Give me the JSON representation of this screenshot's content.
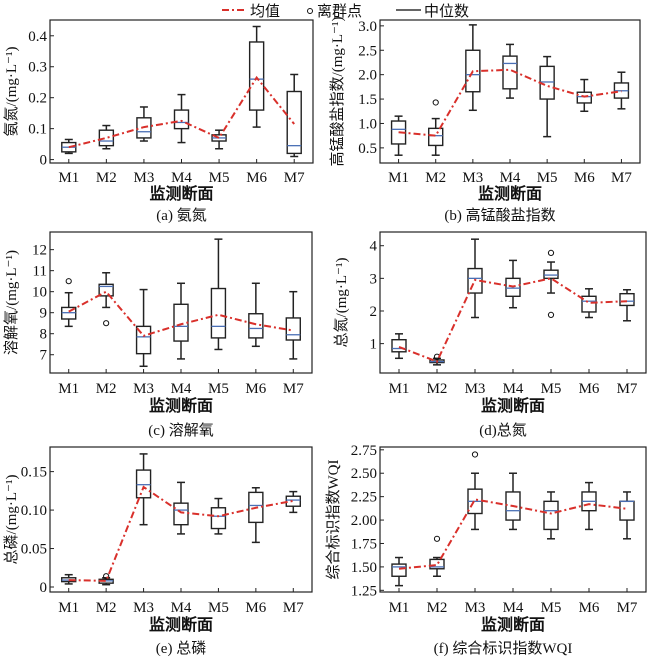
{
  "legend": {
    "mean": "均值",
    "outlier": "离群点",
    "median": "中位数"
  },
  "colors": {
    "mean_line": "#d9302b",
    "median_line": "#4a6fb5",
    "box": "#222222"
  },
  "chart_data": [
    {
      "type": "box",
      "title": "(a) 氨氮",
      "xlabel": "监测断面",
      "ylabel": "氨氮/(mg·L⁻¹)",
      "ylim": [
        -0.011,
        0.451
      ],
      "categories": [
        "M1",
        "M2",
        "M3",
        "M4",
        "M5",
        "M6",
        "M7"
      ],
      "yticks": [
        0,
        0.1,
        0.2,
        0.3,
        0.4
      ],
      "ytick_labels": [
        "0",
        "0.1",
        "0.2",
        "0.3",
        "0.4"
      ],
      "boxes": [
        [
          0.02,
          0.025,
          0.04,
          0.055,
          0.065
        ],
        [
          0.035,
          0.045,
          0.06,
          0.095,
          0.11
        ],
        [
          0.06,
          0.07,
          0.09,
          0.135,
          0.17
        ],
        [
          0.055,
          0.1,
          0.12,
          0.16,
          0.21
        ],
        [
          0.035,
          0.06,
          0.07,
          0.08,
          0.095
        ],
        [
          0.105,
          0.16,
          0.26,
          0.38,
          0.43
        ],
        [
          0.01,
          0.02,
          0.045,
          0.22,
          0.275
        ]
      ],
      "means": [
        0.04,
        0.07,
        0.105,
        0.125,
        0.07,
        0.265,
        0.115
      ],
      "outliers": [
        [],
        [],
        [],
        [],
        [],
        [],
        []
      ]
    },
    {
      "type": "box",
      "title": "(b) 高锰酸盐指数",
      "xlabel": "监测断面",
      "ylabel": "高锰酸盐指数/(mg·L⁻¹)",
      "ylim": [
        0.19,
        3.12
      ],
      "categories": [
        "M1",
        "M2",
        "M3",
        "M4",
        "M5",
        "M6",
        "M7"
      ],
      "yticks": [
        0.5,
        1.0,
        1.5,
        2.0,
        2.5,
        3.0
      ],
      "ytick_labels": [
        "0.5",
        "1.0",
        "1.5",
        "2.0",
        "2.5",
        "3.0"
      ],
      "boxes": [
        [
          0.35,
          0.58,
          0.88,
          1.05,
          1.15
        ],
        [
          0.35,
          0.55,
          0.75,
          0.9,
          1.1
        ],
        [
          1.27,
          1.65,
          2.0,
          2.5,
          3.02
        ],
        [
          1.52,
          1.71,
          2.23,
          2.38,
          2.62
        ],
        [
          0.73,
          1.5,
          1.85,
          2.17,
          2.37
        ],
        [
          1.25,
          1.42,
          1.55,
          1.64,
          1.9
        ],
        [
          1.3,
          1.52,
          1.67,
          1.83,
          2.05
        ]
      ],
      "means": [
        0.82,
        0.75,
        2.07,
        2.1,
        1.77,
        1.55,
        1.66
      ],
      "outliers": [
        [],
        [
          1.43
        ],
        [],
        [],
        [],
        [],
        []
      ]
    },
    {
      "type": "box",
      "title": "(c) 溶解氧",
      "xlabel": "监测断面",
      "ylabel": "溶解氧/(mg·L⁻¹)",
      "ylim": [
        6.13,
        12.84
      ],
      "categories": [
        "M1",
        "M2",
        "M3",
        "M4",
        "M5",
        "M6",
        "M7"
      ],
      "yticks": [
        7,
        8,
        9,
        10,
        11,
        12
      ],
      "ytick_labels": [
        "7",
        "8",
        "9",
        "10",
        "11",
        "12"
      ],
      "boxes": [
        [
          8.35,
          8.7,
          9.0,
          9.25,
          9.95
        ],
        [
          9.25,
          9.8,
          10.25,
          10.35,
          10.9
        ],
        [
          6.45,
          7.05,
          7.85,
          8.35,
          10.1
        ],
        [
          6.8,
          7.65,
          8.35,
          9.4,
          10.4
        ],
        [
          7.25,
          7.8,
          8.35,
          10.15,
          12.5
        ],
        [
          7.4,
          7.8,
          8.25,
          8.95,
          10.4
        ],
        [
          6.8,
          7.7,
          7.95,
          8.75,
          10.0
        ]
      ],
      "means": [
        9.05,
        10.0,
        7.9,
        8.45,
        8.9,
        8.45,
        8.15
      ],
      "outliers": [
        [
          10.5
        ],
        [
          8.5
        ],
        [],
        [],
        [],
        [],
        []
      ]
    },
    {
      "type": "box",
      "title": "(d)总氮",
      "xlabel": "监测断面",
      "ylabel": "总氮/(mg·L⁻¹)",
      "ylim": [
        0.1,
        4.42
      ],
      "categories": [
        "M1",
        "M2",
        "M3",
        "M4",
        "M5",
        "M6",
        "M7"
      ],
      "yticks": [
        1,
        2,
        3,
        4
      ],
      "ytick_labels": [
        "1",
        "2",
        "3",
        "4"
      ],
      "boxes": [
        [
          0.55,
          0.75,
          0.85,
          1.12,
          1.3
        ],
        [
          0.35,
          0.42,
          0.45,
          0.5,
          0.55
        ],
        [
          1.8,
          2.55,
          3.0,
          3.3,
          4.2
        ],
        [
          2.1,
          2.45,
          2.7,
          3.0,
          3.55
        ],
        [
          2.55,
          3.0,
          3.1,
          3.25,
          3.5
        ],
        [
          1.8,
          1.97,
          2.3,
          2.45,
          2.68
        ],
        [
          1.7,
          2.17,
          2.3,
          2.53,
          2.65
        ]
      ],
      "means": [
        0.9,
        0.45,
        2.95,
        2.75,
        3.0,
        2.25,
        2.3
      ],
      "outliers": [
        [],
        [
          0.6
        ],
        [],
        [],
        [
          3.78,
          1.88
        ],
        [],
        []
      ]
    },
    {
      "type": "box",
      "title": "(e) 总磷",
      "xlabel": "监测断面",
      "ylabel": "总磷/(mg·L⁻¹)",
      "ylim": [
        -0.0065,
        0.182
      ],
      "categories": [
        "M1",
        "M2",
        "M3",
        "M4",
        "M5",
        "M6",
        "M7"
      ],
      "yticks": [
        0,
        0.05,
        0.1,
        0.15
      ],
      "ytick_labels": [
        "0",
        "0.05",
        "0.10",
        "0.15"
      ],
      "boxes": [
        [
          0.004,
          0.007,
          0.009,
          0.012,
          0.016
        ],
        [
          0.003,
          0.005,
          0.008,
          0.01,
          0.012
        ],
        [
          0.081,
          0.116,
          0.133,
          0.152,
          0.173
        ],
        [
          0.069,
          0.081,
          0.1,
          0.109,
          0.136
        ],
        [
          0.069,
          0.076,
          0.092,
          0.103,
          0.115
        ],
        [
          0.058,
          0.084,
          0.106,
          0.123,
          0.129
        ],
        [
          0.097,
          0.105,
          0.113,
          0.118,
          0.124
        ]
      ],
      "means": [
        0.009,
        0.008,
        0.13,
        0.097,
        0.092,
        0.103,
        0.112
      ],
      "outliers": [
        [],
        [
          0.014
        ],
        [],
        [],
        [],
        [],
        []
      ]
    },
    {
      "type": "box",
      "title": "(f) 综合标识指数WQI",
      "xlabel": "监测断面",
      "ylabel": "综合标识指数WQI",
      "ylim": [
        1.232,
        2.78
      ],
      "categories": [
        "M1",
        "M2",
        "M3",
        "M4",
        "M5",
        "M6",
        "M7"
      ],
      "yticks": [
        1.25,
        1.5,
        1.75,
        2.0,
        2.25,
        2.5,
        2.75
      ],
      "ytick_labels": [
        "1.25",
        "1.50",
        "1.75",
        "2.00",
        "2.25",
        "2.50",
        "2.75"
      ],
      "boxes": [
        [
          1.3,
          1.4,
          1.5,
          1.53,
          1.6
        ],
        [
          1.4,
          1.48,
          1.5,
          1.58,
          1.6
        ],
        [
          1.9,
          2.07,
          2.2,
          2.33,
          2.5
        ],
        [
          1.9,
          2.0,
          2.1,
          2.3,
          2.5
        ],
        [
          1.8,
          1.9,
          2.1,
          2.2,
          2.3
        ],
        [
          1.9,
          2.1,
          2.2,
          2.3,
          2.4
        ],
        [
          1.8,
          2.0,
          2.2,
          2.2,
          2.3
        ]
      ],
      "means": [
        1.48,
        1.52,
        2.22,
        2.15,
        2.07,
        2.17,
        2.12
      ],
      "outliers": [
        [],
        [
          1.8
        ],
        [
          2.7
        ],
        [],
        [],
        [],
        []
      ]
    }
  ]
}
